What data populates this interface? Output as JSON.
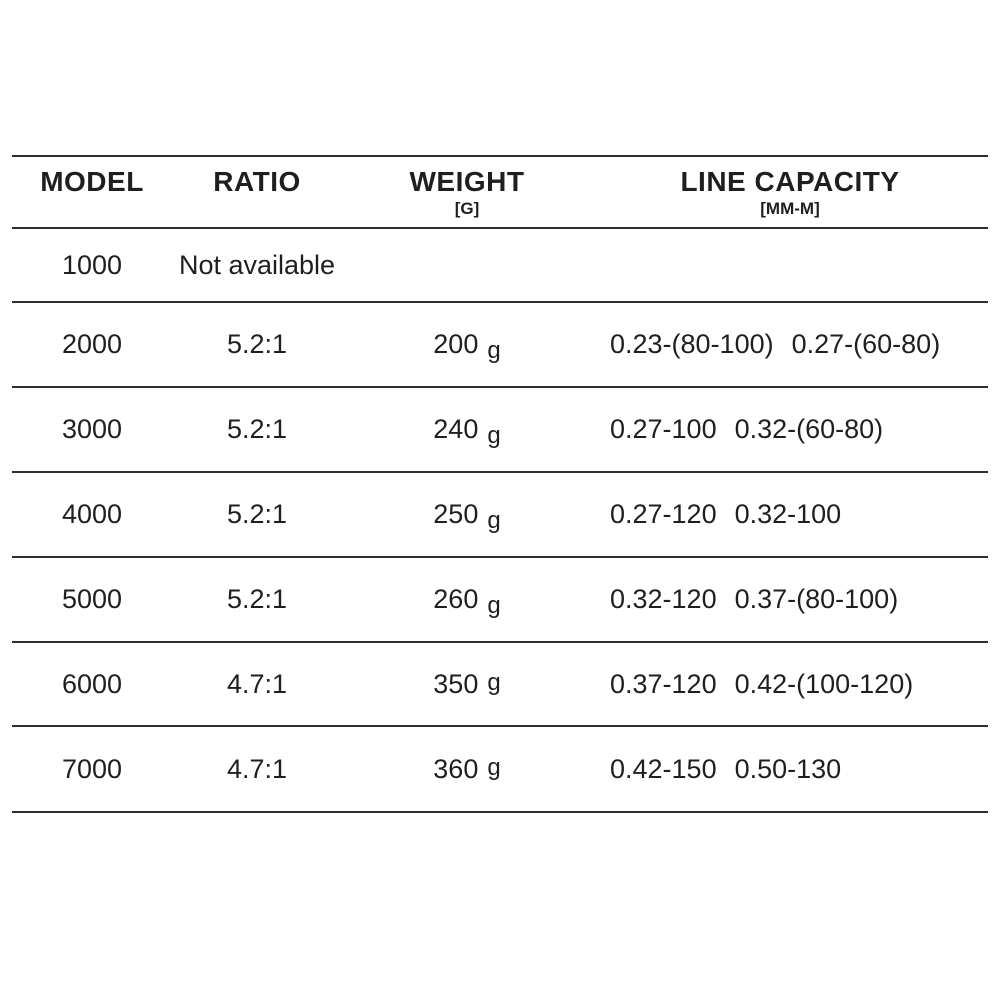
{
  "page": {
    "background_color": "#ffffff",
    "text_color": "#1f1f1f",
    "rule_color": "#2e2e2e"
  },
  "table": {
    "header": {
      "model": {
        "label": "MODEL",
        "sublabel": ""
      },
      "ratio": {
        "label": "RATIO",
        "sublabel": ""
      },
      "weight": {
        "label": "WEIGHT",
        "sublabel": "[G]"
      },
      "capacity": {
        "label": "LINE CAPACITY",
        "sublabel": "[MM-M]"
      }
    },
    "rows": [
      {
        "model": "1000",
        "ratio": "Not available",
        "weight_value": "",
        "weight_unit": "",
        "capacity": [
          "",
          ""
        ]
      },
      {
        "model": "2000",
        "ratio": "5.2:1",
        "weight_value": "200",
        "weight_unit": "g",
        "capacity": [
          "0.23-(80-100)",
          "0.27-(60-80)"
        ]
      },
      {
        "model": "3000",
        "ratio": "5.2:1",
        "weight_value": "240",
        "weight_unit": "g",
        "capacity": [
          "0.27-100",
          "0.32-(60-80)"
        ]
      },
      {
        "model": "4000",
        "ratio": "5.2:1",
        "weight_value": "250",
        "weight_unit": "g",
        "capacity": [
          "0.27-120",
          "0.32-100"
        ]
      },
      {
        "model": "5000",
        "ratio": "5.2:1",
        "weight_value": "260",
        "weight_unit": "g",
        "capacity": [
          "0.32-120",
          "0.37-(80-100)"
        ]
      },
      {
        "model": "6000",
        "ratio": "4.7:1",
        "weight_value": "350",
        "weight_unit": "g",
        "capacity": [
          "0.37-120",
          "0.42-(100-120)"
        ]
      },
      {
        "model": "7000",
        "ratio": "4.7:1",
        "weight_value": "360",
        "weight_unit": "g",
        "capacity": [
          "0.42-150",
          "0.50-130"
        ]
      }
    ]
  }
}
